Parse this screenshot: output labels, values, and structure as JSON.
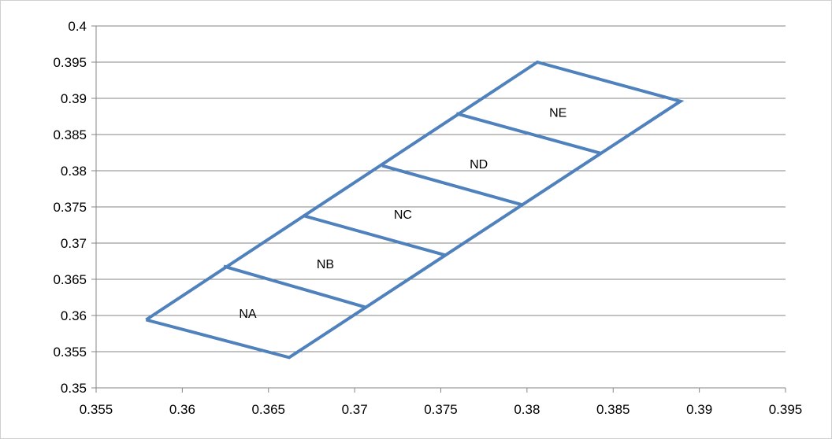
{
  "chart_data": {
    "type": "line",
    "title": "",
    "xlabel": "",
    "ylabel": "",
    "xlim": [
      0.355,
      0.395
    ],
    "ylim": [
      0.35,
      0.4
    ],
    "x_ticks": [
      "0.355",
      "0.36",
      "0.365",
      "0.37",
      "0.375",
      "0.38",
      "0.385",
      "0.39",
      "0.395"
    ],
    "y_ticks": [
      "0.35",
      "0.355",
      "0.36",
      "0.365",
      "0.37",
      "0.375",
      "0.38",
      "0.385",
      "0.39",
      "0.395",
      "0.4"
    ],
    "grid": "horizontal",
    "line_color": "#4f81bd",
    "series": [
      {
        "points": [
          [
            0.3579,
            0.3594
          ],
          [
            0.3662,
            0.3542
          ],
          [
            0.3889,
            0.3896
          ],
          [
            0.3806,
            0.395
          ],
          [
            0.3579,
            0.3594
          ]
        ]
      },
      {
        "points": [
          [
            0.3624,
            0.3668
          ],
          [
            0.3707,
            0.3611
          ]
        ]
      },
      {
        "points": [
          [
            0.367,
            0.3738
          ],
          [
            0.3753,
            0.3683
          ]
        ]
      },
      {
        "points": [
          [
            0.3716,
            0.3807
          ],
          [
            0.3797,
            0.3753
          ]
        ]
      },
      {
        "points": [
          [
            0.3759,
            0.3879
          ],
          [
            0.3843,
            0.3824
          ]
        ]
      }
    ],
    "annotations": [
      {
        "text": "NA",
        "x": 0.3638,
        "y": 0.3603
      },
      {
        "text": "NB",
        "x": 0.3683,
        "y": 0.3672
      },
      {
        "text": "NC",
        "x": 0.3728,
        "y": 0.374
      },
      {
        "text": "ND",
        "x": 0.3772,
        "y": 0.381
      },
      {
        "text": "NE",
        "x": 0.3818,
        "y": 0.3881
      }
    ]
  }
}
